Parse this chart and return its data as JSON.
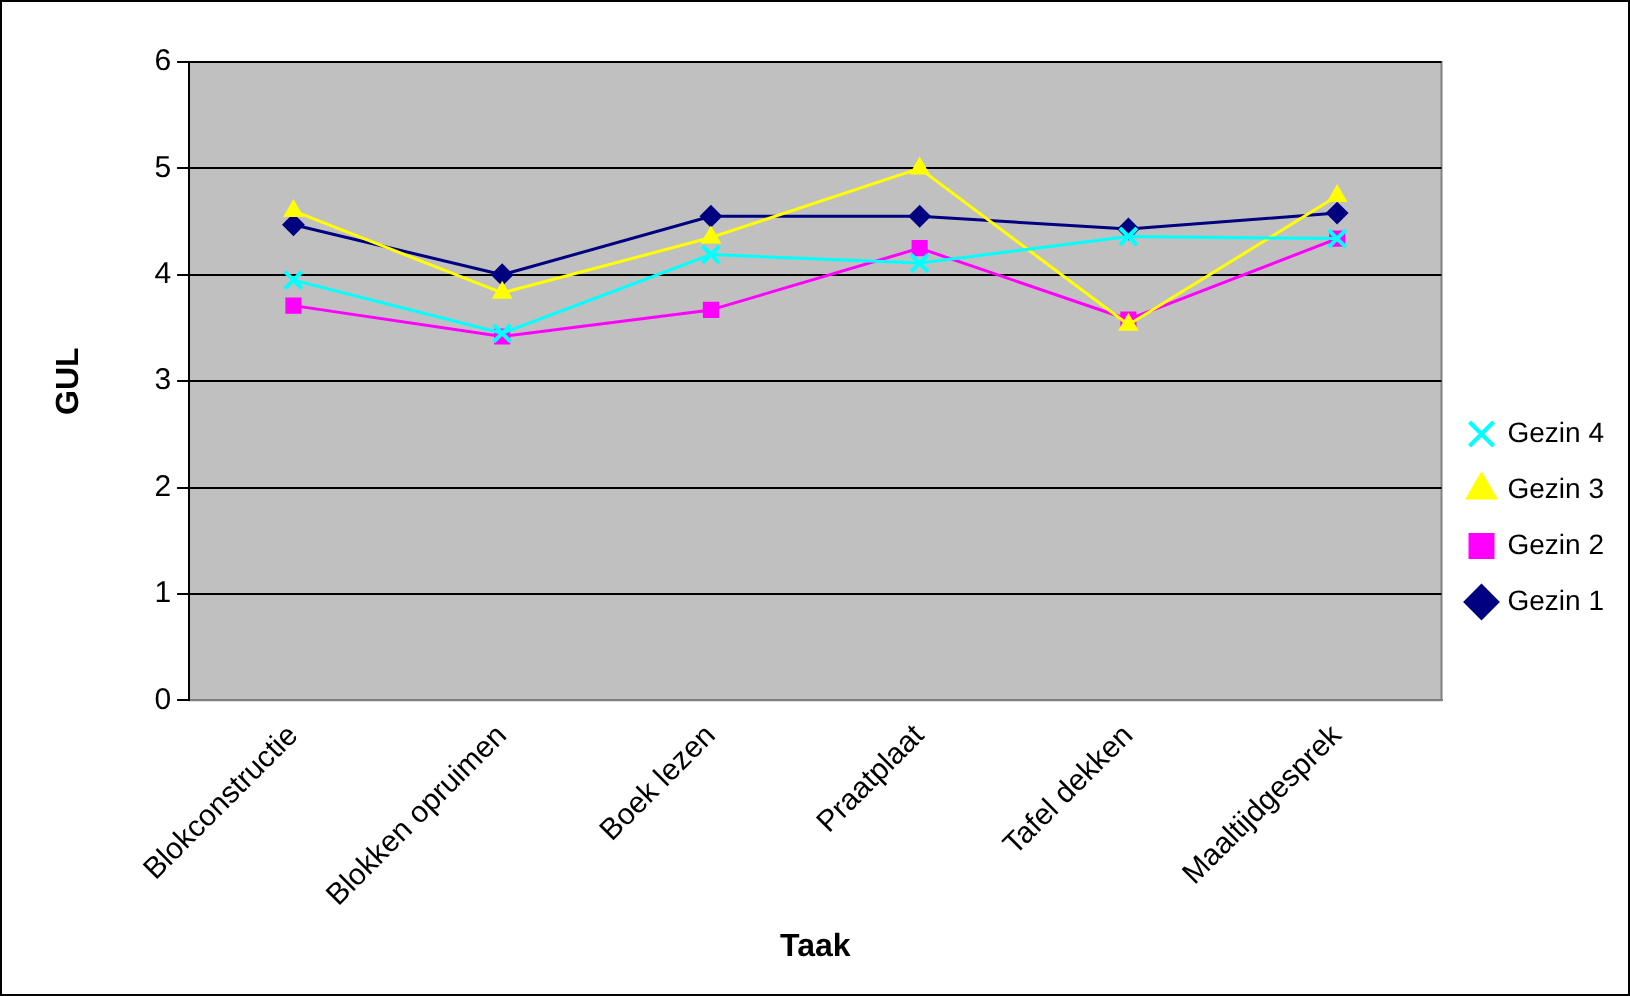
{
  "chart_data": {
    "type": "line",
    "xlabel": "Taak",
    "ylabel": "GUL",
    "categories": [
      "Blokconstructie",
      "Blokken opruimen",
      "Boek lezen",
      "Praatplaat",
      "Tafel dekken",
      "Maaltijdgesprek"
    ],
    "series": [
      {
        "name": "Gezin 1",
        "color": "#000080",
        "marker": "diamond",
        "values": [
          4.47,
          4.0,
          4.55,
          4.55,
          4.43,
          4.58
        ]
      },
      {
        "name": "Gezin 2",
        "color": "#ff00ff",
        "marker": "square",
        "values": [
          3.71,
          3.42,
          3.67,
          4.25,
          3.58,
          4.34
        ]
      },
      {
        "name": "Gezin 3",
        "color": "#ffff00",
        "marker": "triangle",
        "values": [
          4.6,
          3.83,
          4.35,
          5.0,
          3.53,
          4.74
        ]
      },
      {
        "name": "Gezin 4",
        "color": "#00ffff",
        "marker": "cross",
        "values": [
          3.95,
          3.45,
          4.19,
          4.11,
          4.36,
          4.34
        ]
      }
    ],
    "ylim": [
      0,
      6
    ],
    "yticks": [
      0,
      1,
      2,
      3,
      4,
      5,
      6
    ],
    "grid": "y",
    "legend": "right",
    "line_style": "solid"
  }
}
